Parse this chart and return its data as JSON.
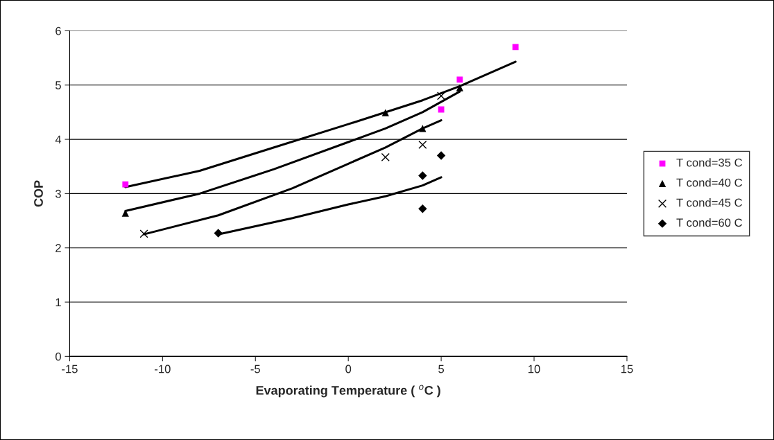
{
  "chart_data": {
    "type": "scatter",
    "xlabel": "Evaporating Temperature ( $^{o}$C )",
    "ylabel": "COP",
    "xlim": [
      -15,
      15
    ],
    "xticks": [
      -15,
      -10,
      -5,
      0,
      5,
      10,
      15
    ],
    "ylim": [
      0,
      6
    ],
    "yticks": [
      0,
      1,
      2,
      3,
      4,
      5,
      6
    ],
    "grid": "y",
    "legend": "right",
    "series": [
      {
        "name": "T cond=35 C",
        "marker": "square",
        "color": "#ff00ff",
        "x": [
          -12,
          5,
          6,
          9
        ],
        "values": [
          3.17,
          4.55,
          5.1,
          5.7
        ]
      },
      {
        "name": "T cond=40 C",
        "marker": "triangle",
        "color": "#000000",
        "x": [
          -12,
          2,
          4,
          6
        ],
        "values": [
          2.64,
          4.49,
          4.2,
          4.95
        ]
      },
      {
        "name": "T cond=45 C",
        "marker": "cross",
        "color": "#000000",
        "x": [
          -11,
          2,
          4,
          5
        ],
        "values": [
          2.26,
          3.67,
          3.9,
          4.8
        ]
      },
      {
        "name": "T cond=60 C",
        "marker": "diamond",
        "color": "#000000",
        "x": [
          -7,
          4,
          4,
          5
        ],
        "values": [
          2.27,
          3.33,
          2.72,
          3.7
        ]
      },
      {
        "type": "line",
        "marker": "none",
        "color": "#000000",
        "x": [
          -12,
          -8,
          -4,
          0,
          2,
          4,
          6,
          9
        ],
        "values": [
          3.12,
          3.42,
          3.85,
          4.28,
          4.5,
          4.72,
          4.98,
          5.43
        ]
      },
      {
        "type": "line",
        "marker": "none",
        "color": "#000000",
        "x": [
          -12,
          -8,
          -4,
          0,
          2,
          4,
          6
        ],
        "values": [
          2.68,
          3.0,
          3.45,
          3.95,
          4.2,
          4.5,
          4.88
        ]
      },
      {
        "type": "line",
        "marker": "none",
        "color": "#000000",
        "x": [
          -11,
          -7,
          -3,
          0,
          2,
          4,
          5
        ],
        "values": [
          2.25,
          2.6,
          3.1,
          3.55,
          3.85,
          4.2,
          4.35
        ]
      },
      {
        "type": "line",
        "marker": "none",
        "color": "#000000",
        "x": [
          -7,
          -3,
          0,
          2,
          4,
          5
        ],
        "values": [
          2.25,
          2.55,
          2.8,
          2.95,
          3.15,
          3.3
        ]
      }
    ]
  }
}
